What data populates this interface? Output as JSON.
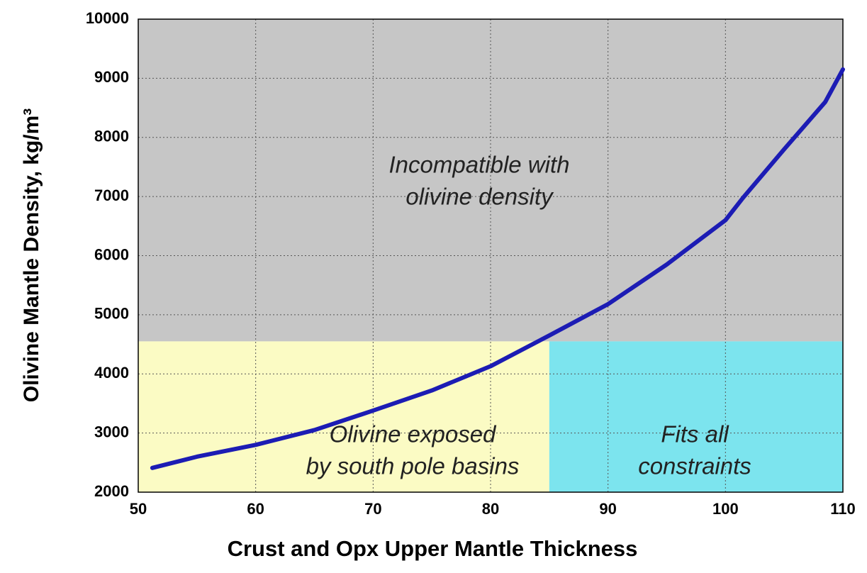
{
  "chart_data": {
    "type": "line",
    "xlabel": "Crust and Opx Upper Mantle Thickness",
    "ylabel": "Olivine Mantle Density, kg/m³",
    "x": [
      51.2,
      55,
      60,
      65,
      70,
      75,
      80,
      85,
      90,
      95,
      100,
      101.5,
      105,
      108.5,
      110
    ],
    "values": [
      2410,
      2600,
      2800,
      3050,
      3380,
      3720,
      4130,
      4650,
      5180,
      5850,
      6600,
      6980,
      7800,
      8600,
      9150
    ],
    "color": "#1c1cb4",
    "xlim": [
      50,
      110
    ],
    "ylim": [
      2000,
      10000
    ],
    "xticks": [
      50,
      60,
      70,
      80,
      90,
      100,
      110
    ],
    "yticks": [
      2000,
      3000,
      4000,
      5000,
      6000,
      7000,
      8000,
      9000,
      10000
    ],
    "grid": true,
    "regions": [
      {
        "x": [
          50,
          110
        ],
        "y": [
          4550,
          10000
        ],
        "color": "#c6c6c6",
        "label": [
          "Incompatible with",
          "olivine density"
        ]
      },
      {
        "x": [
          50,
          85
        ],
        "y": [
          2000,
          4550
        ],
        "color": "#fbfbc4",
        "label": [
          "Olivine exposed",
          "by south pole basins"
        ]
      },
      {
        "x": [
          85,
          110
        ],
        "y": [
          2000,
          4550
        ],
        "color": "#7ce4ee",
        "label": [
          "Fits all",
          "constraints"
        ]
      }
    ]
  }
}
